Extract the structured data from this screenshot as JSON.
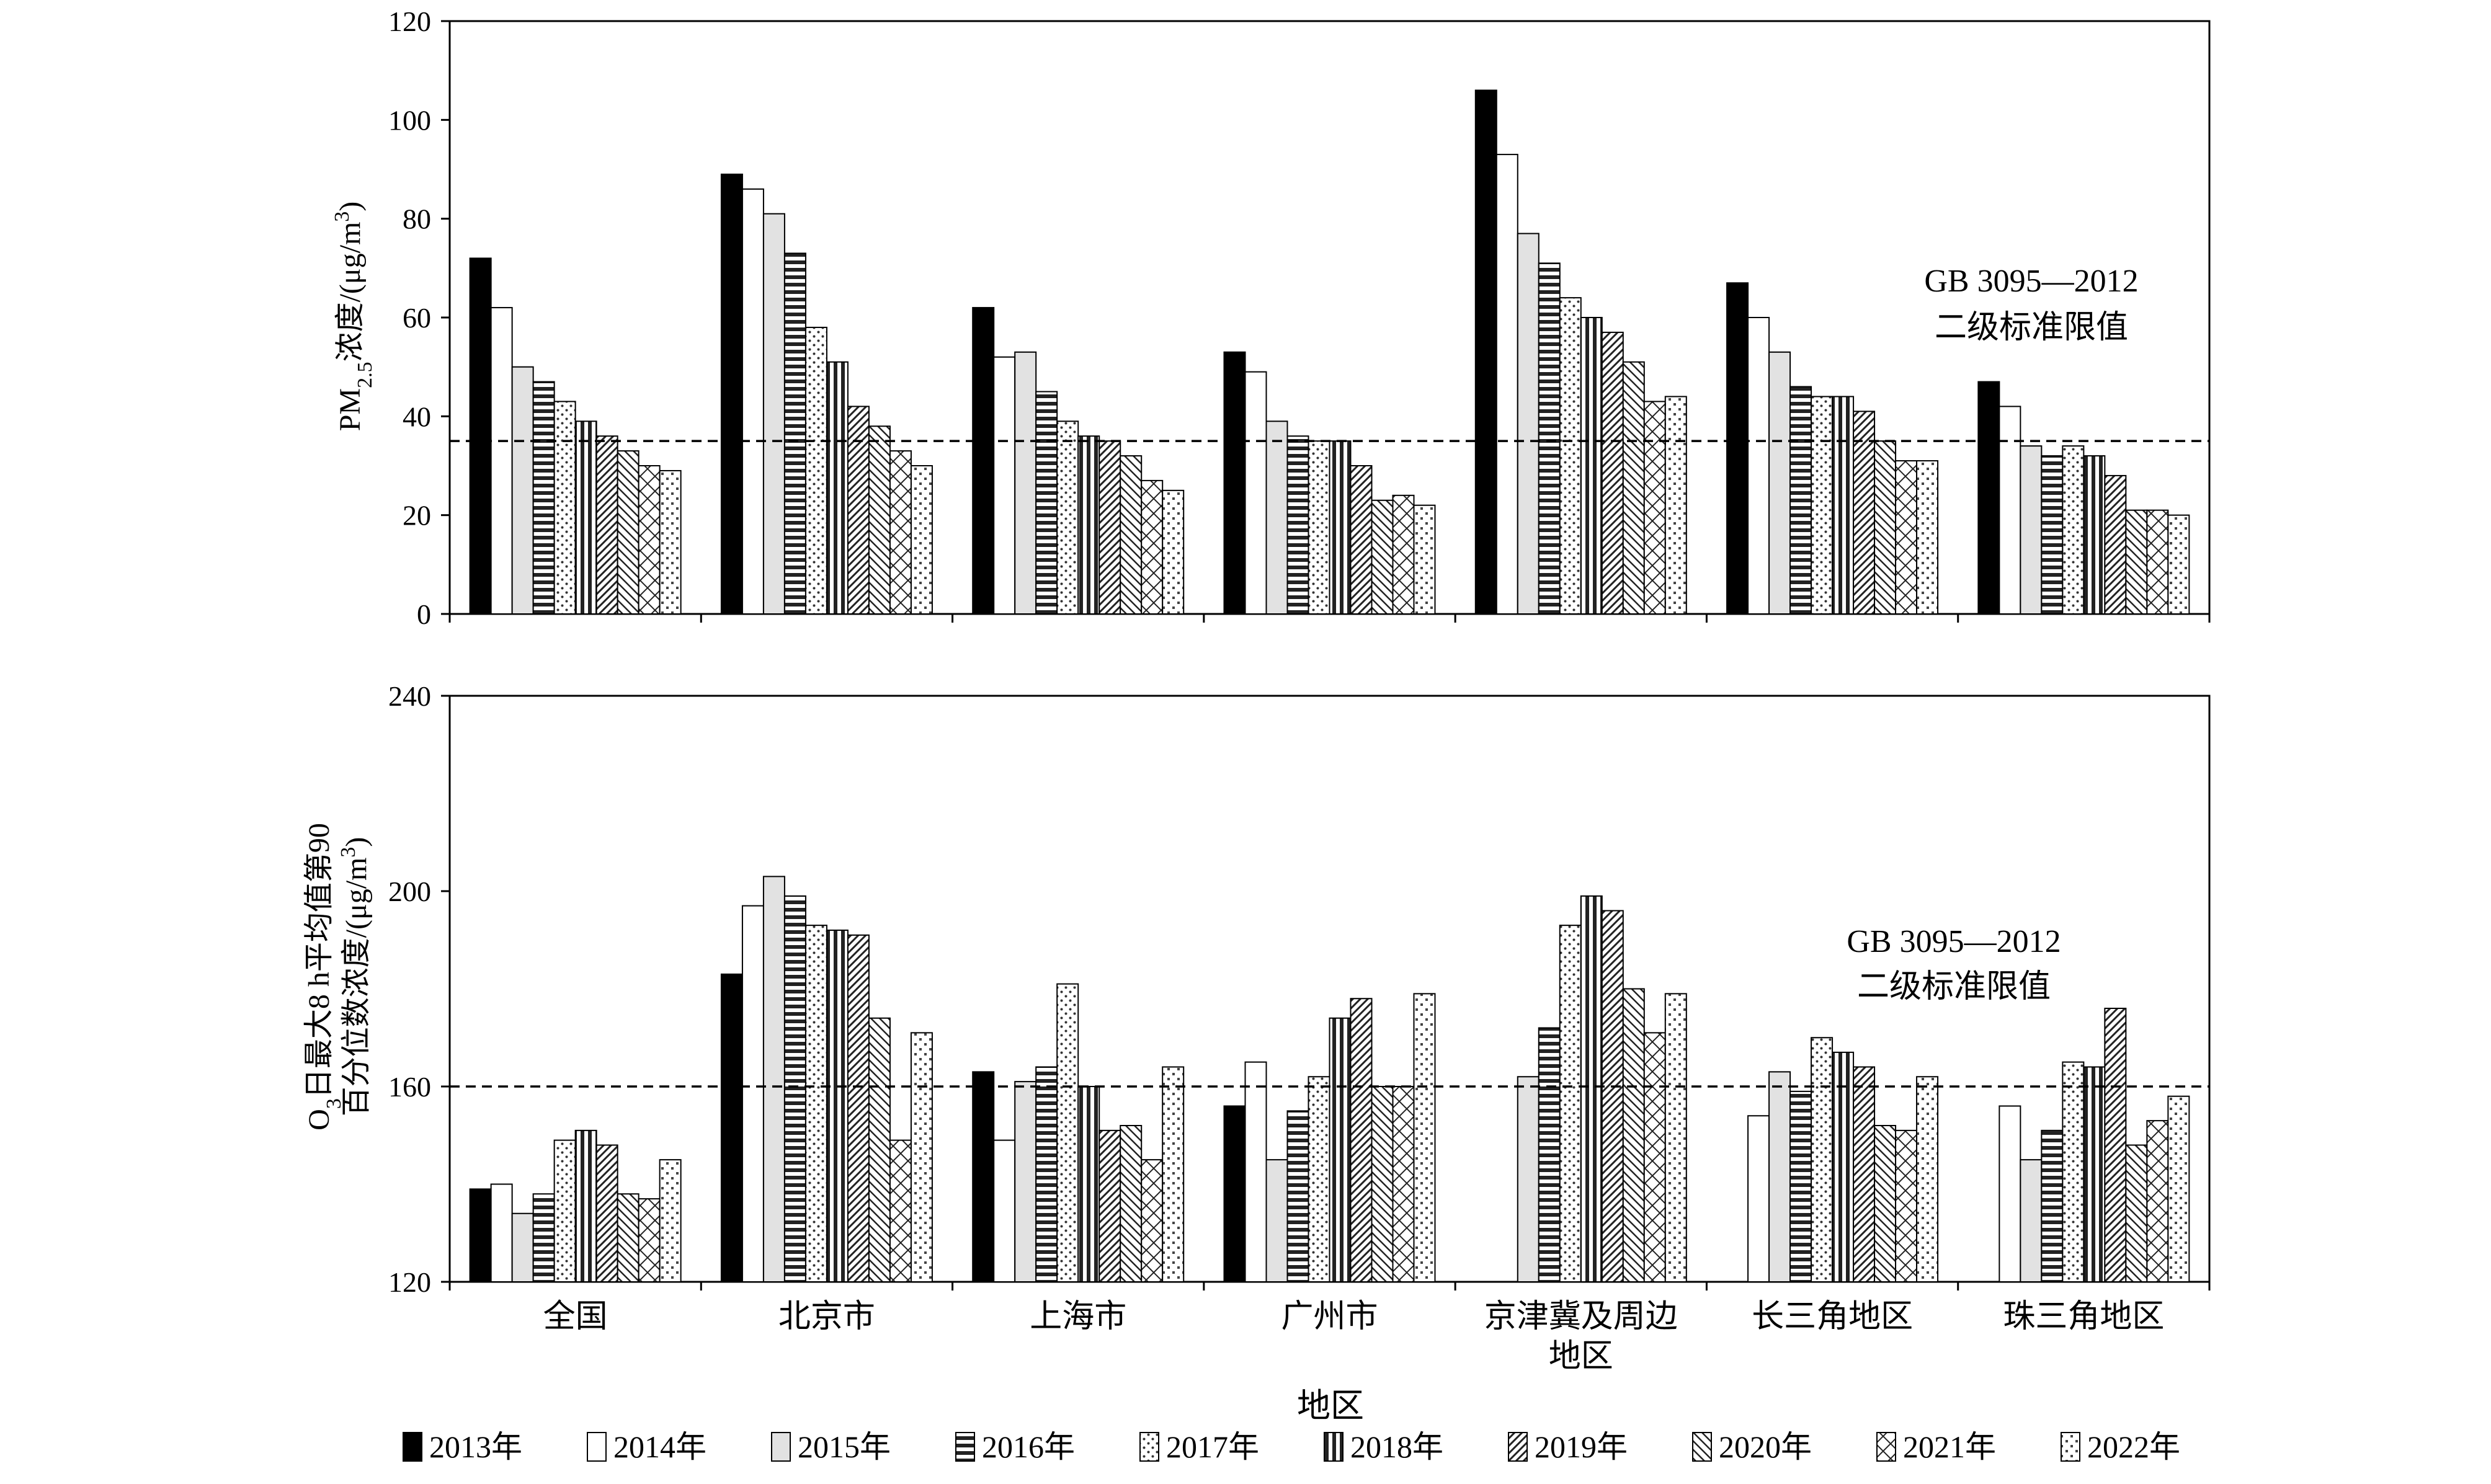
{
  "legend": [
    "2013年",
    "2014年",
    "2015年",
    "2016年",
    "2017年",
    "2018年",
    "2019年",
    "2020年",
    "2021年",
    "2022年"
  ],
  "xlabel": "地区",
  "categories": [
    [
      "全国"
    ],
    [
      "北京市"
    ],
    [
      "上海市"
    ],
    [
      "广州市"
    ],
    [
      "京津冀及周边",
      "地区"
    ],
    [
      "长三角地区"
    ],
    [
      "珠三角地区"
    ]
  ],
  "chart_data": [
    {
      "type": "bar",
      "ylabel_main": "PM",
      "ylabel_sub": "2.5",
      "ylabel_rest": "浓度/(μg/m",
      "ylabel_sup": "3",
      "ylabel_end": ")",
      "ylim": [
        0,
        120
      ],
      "yticks": [
        0,
        20,
        40,
        60,
        80,
        100,
        120
      ],
      "standard": {
        "value": 35,
        "label_line1": "GB 3095—2012",
        "label_line2": "二级标准限值"
      },
      "series": [
        {
          "name": "2013年",
          "values": [
            72,
            89,
            62,
            53,
            106,
            67,
            47
          ]
        },
        {
          "name": "2014年",
          "values": [
            62,
            86,
            52,
            49,
            93,
            60,
            42
          ]
        },
        {
          "name": "2015年",
          "values": [
            50,
            81,
            53,
            39,
            77,
            53,
            34
          ]
        },
        {
          "name": "2016年",
          "values": [
            47,
            73,
            45,
            36,
            71,
            46,
            32
          ]
        },
        {
          "name": "2017年",
          "values": [
            43,
            58,
            39,
            35,
            64,
            44,
            34
          ]
        },
        {
          "name": "2018年",
          "values": [
            39,
            51,
            36,
            35,
            60,
            44,
            32
          ]
        },
        {
          "name": "2019年",
          "values": [
            36,
            42,
            35,
            30,
            57,
            41,
            28
          ]
        },
        {
          "name": "2020年",
          "values": [
            33,
            38,
            32,
            23,
            51,
            35,
            21
          ]
        },
        {
          "name": "2021年",
          "values": [
            30,
            33,
            27,
            24,
            43,
            31,
            21
          ]
        },
        {
          "name": "2022年",
          "values": [
            29,
            30,
            25,
            22,
            44,
            31,
            20
          ]
        }
      ]
    },
    {
      "type": "bar",
      "ylabel_line1_main": "O",
      "ylabel_line1_sub": "3",
      "ylabel_line1_rest": "日最大8 h平均值第90",
      "ylabel_line2": "百分位数浓度/(μg/m",
      "ylabel_line2_sup": "3",
      "ylabel_line2_end": ")",
      "ylim": [
        120,
        240
      ],
      "yticks": [
        120,
        160,
        200,
        240
      ],
      "standard": {
        "value": 160,
        "label_line1": "GB 3095—2012",
        "label_line2": "二级标准限值"
      },
      "series": [
        {
          "name": "2013年",
          "values": [
            139,
            183,
            163,
            156,
            null,
            null,
            null
          ]
        },
        {
          "name": "2014年",
          "values": [
            140,
            197,
            149,
            165,
            null,
            154,
            156
          ]
        },
        {
          "name": "2015年",
          "values": [
            134,
            203,
            161,
            145,
            162,
            163,
            145
          ]
        },
        {
          "name": "2016年",
          "values": [
            138,
            199,
            164,
            155,
            172,
            159,
            151
          ]
        },
        {
          "name": "2017年",
          "values": [
            149,
            193,
            181,
            162,
            193,
            170,
            165
          ]
        },
        {
          "name": "2018年",
          "values": [
            151,
            192,
            160,
            174,
            199,
            167,
            164
          ]
        },
        {
          "name": "2019年",
          "values": [
            148,
            191,
            151,
            178,
            196,
            164,
            176
          ]
        },
        {
          "name": "2020年",
          "values": [
            138,
            174,
            152,
            160,
            180,
            152,
            148
          ]
        },
        {
          "name": "2021年",
          "values": [
            137,
            149,
            145,
            160,
            171,
            151,
            153
          ]
        },
        {
          "name": "2022年",
          "values": [
            145,
            171,
            164,
            179,
            179,
            162,
            158
          ]
        }
      ]
    }
  ]
}
